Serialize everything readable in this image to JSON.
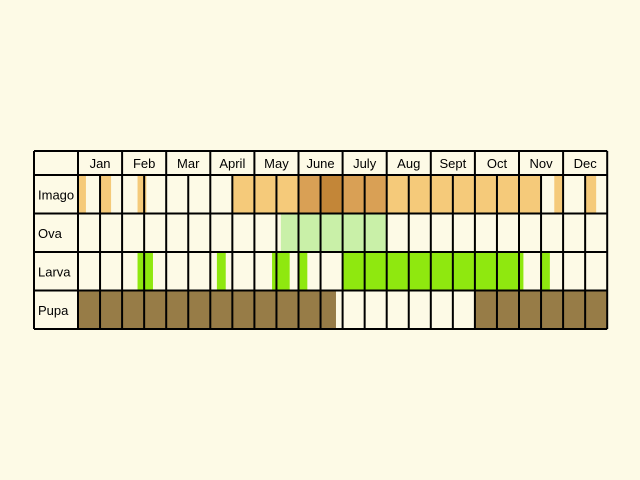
{
  "months": [
    "Jan",
    "Feb",
    "Mar",
    "Apr",
    "May",
    "June",
    "July",
    "Aug",
    "Sept",
    "Oct",
    "Nov",
    "Dec"
  ],
  "month_labels_shown": [
    "Jan",
    "Feb",
    "Mar",
    "April",
    "May",
    "June",
    "July",
    "Aug",
    "Sept",
    "Oct",
    "Nov",
    "Dec"
  ],
  "subdivisions_per_month": 2,
  "colors": {
    "background": "#fdfae6",
    "grid": "#000000",
    "imago_light": "#f5ca7a",
    "imago_mid": "#d9a055",
    "imago_dark": "#c38638",
    "ova": "#c9f0a8",
    "larva": "#8fe80f",
    "pupa": "#977c47"
  },
  "rows": [
    {
      "name": "Imago",
      "segments": [
        {
          "start": 0.0,
          "end": 0.18,
          "tone": "imago_light"
        },
        {
          "start": 0.5,
          "end": 0.75,
          "tone": "imago_light"
        },
        {
          "start": 1.35,
          "end": 1.55,
          "tone": "imago_light"
        },
        {
          "start": 3.5,
          "end": 5.0,
          "tone": "imago_light"
        },
        {
          "start": 5.0,
          "end": 5.5,
          "tone": "imago_mid"
        },
        {
          "start": 5.5,
          "end": 6.0,
          "tone": "imago_dark"
        },
        {
          "start": 6.0,
          "end": 7.0,
          "tone": "imago_mid"
        },
        {
          "start": 7.0,
          "end": 10.5,
          "tone": "imago_light"
        },
        {
          "start": 10.8,
          "end": 11.0,
          "tone": "imago_light"
        },
        {
          "start": 11.5,
          "end": 11.75,
          "tone": "imago_light"
        }
      ]
    },
    {
      "name": "Ova",
      "segments": [
        {
          "start": 4.6,
          "end": 7.0,
          "tone": "ova"
        }
      ]
    },
    {
      "name": "Larva",
      "segments": [
        {
          "start": 1.35,
          "end": 1.7,
          "tone": "larva"
        },
        {
          "start": 3.15,
          "end": 3.35,
          "tone": "larva"
        },
        {
          "start": 4.4,
          "end": 4.8,
          "tone": "larva"
        },
        {
          "start": 5.0,
          "end": 5.2,
          "tone": "larva"
        },
        {
          "start": 6.0,
          "end": 10.1,
          "tone": "larva"
        },
        {
          "start": 10.5,
          "end": 10.7,
          "tone": "larva"
        }
      ]
    },
    {
      "name": "Pupa",
      "segments": [
        {
          "start": 0.0,
          "end": 5.85,
          "tone": "pupa"
        },
        {
          "start": 9.0,
          "end": 12.0,
          "tone": "pupa"
        }
      ]
    }
  ]
}
